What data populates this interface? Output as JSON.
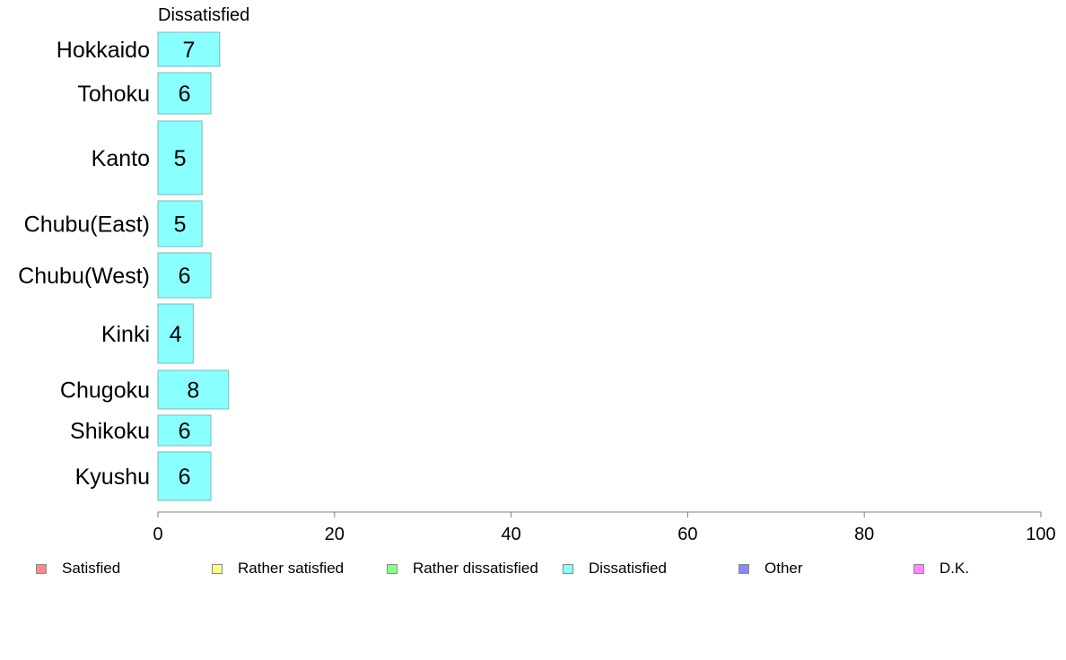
{
  "chart_data": {
    "type": "bar",
    "orientation": "horizontal",
    "series_title": "Dissatisfied",
    "categories": [
      "Hokkaido",
      "Tohoku",
      "Kanto",
      "Chubu(East)",
      "Chubu(West)",
      "Kinki",
      "Chugoku",
      "Shikoku",
      "Kyushu"
    ],
    "series": [
      {
        "name": "Dissatisfied",
        "values": [
          7,
          6,
          5,
          5,
          6,
          4,
          8,
          6,
          6
        ],
        "color": "#8affff"
      }
    ],
    "xlim": [
      0,
      100
    ],
    "xticks": [
      0,
      20,
      40,
      60,
      80,
      100
    ],
    "grid": false,
    "legend_position": "bottom",
    "legend": [
      {
        "label": "Satisfied",
        "color": "#ff8a8a"
      },
      {
        "label": "Rather satisfied",
        "color": "#ffff8a"
      },
      {
        "label": "Rather dissatisfied",
        "color": "#8aff8a"
      },
      {
        "label": "Dissatisfied",
        "color": "#8affff"
      },
      {
        "label": "Other",
        "color": "#8a8aff"
      },
      {
        "label": "D.K.",
        "color": "#ff8aff"
      }
    ]
  }
}
